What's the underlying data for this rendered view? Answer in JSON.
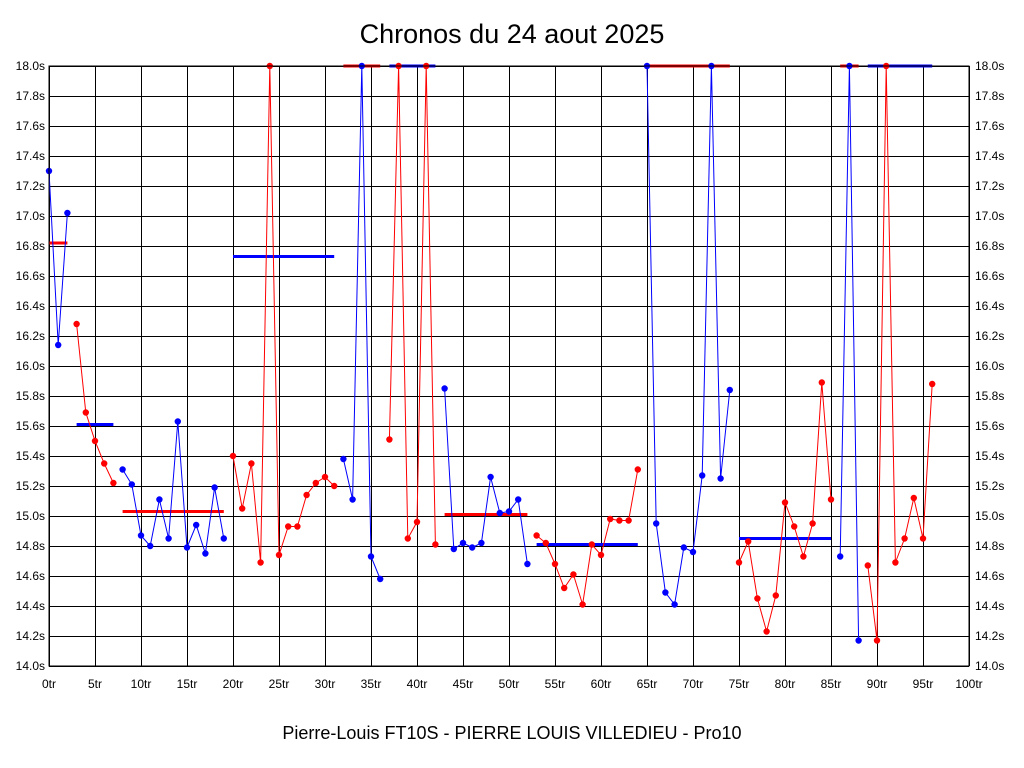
{
  "chart_data": {
    "type": "line",
    "title": "Chronos du 24 aout 2025",
    "subtitle": "Pierre-Louis FT10S - PIERRE LOUIS VILLEDIEU - Pro10",
    "x_ticks": [
      "0tr",
      "5tr",
      "10tr",
      "15tr",
      "20tr",
      "25tr",
      "30tr",
      "35tr",
      "40tr",
      "45tr",
      "50tr",
      "55tr",
      "60tr",
      "65tr",
      "70tr",
      "75tr",
      "80tr",
      "85tr",
      "90tr",
      "95tr",
      "100tr"
    ],
    "y_ticks": [
      "14.0s",
      "14.2s",
      "14.4s",
      "14.6s",
      "14.8s",
      "15.0s",
      "15.2s",
      "15.4s",
      "15.6s",
      "15.8s",
      "16.0s",
      "16.2s",
      "16.4s",
      "16.6s",
      "16.8s",
      "17.0s",
      "17.2s",
      "17.4s",
      "17.6s",
      "17.8s",
      "18.0s"
    ],
    "xlim": [
      0,
      100
    ],
    "ylim": [
      14.0,
      18.0
    ],
    "grid": true,
    "y_axis_both_sides": true,
    "colors": {
      "red": "#ff0000",
      "blue": "#0000ff"
    },
    "segments": [
      {
        "color": "blue",
        "points": [
          [
            0,
            17.3
          ],
          [
            1,
            16.14
          ],
          [
            2,
            17.02
          ]
        ]
      },
      {
        "color": "red",
        "points": [
          [
            3,
            16.28
          ],
          [
            4,
            15.69
          ],
          [
            5,
            15.5
          ],
          [
            6,
            15.35
          ],
          [
            7,
            15.22
          ]
        ]
      },
      {
        "color": "blue",
        "points": [
          [
            8,
            15.31
          ],
          [
            9,
            15.21
          ],
          [
            10,
            14.87
          ],
          [
            11,
            14.8
          ],
          [
            12,
            15.11
          ],
          [
            13,
            14.85
          ],
          [
            14,
            15.63
          ],
          [
            15,
            14.79
          ],
          [
            16,
            14.94
          ],
          [
            17,
            14.75
          ],
          [
            18,
            15.19
          ],
          [
            19,
            14.85
          ]
        ]
      },
      {
        "color": "red",
        "points": [
          [
            20,
            15.4
          ],
          [
            21,
            15.05
          ],
          [
            22,
            15.35
          ],
          [
            23,
            14.69
          ],
          [
            24,
            18.0
          ],
          [
            25,
            14.74
          ],
          [
            26,
            14.93
          ],
          [
            27,
            14.93
          ],
          [
            28,
            15.14
          ],
          [
            29,
            15.22
          ],
          [
            30,
            15.26
          ],
          [
            31,
            15.2
          ]
        ]
      },
      {
        "color": "blue",
        "points": [
          [
            32,
            15.38
          ],
          [
            33,
            15.11
          ],
          [
            34,
            18.0
          ],
          [
            35,
            14.73
          ],
          [
            36,
            14.58
          ]
        ]
      },
      {
        "color": "red",
        "points": [
          [
            37,
            15.51
          ],
          [
            38,
            18.0
          ],
          [
            39,
            14.85
          ],
          [
            40,
            14.96
          ],
          [
            41,
            18.0
          ],
          [
            42,
            14.81
          ]
        ]
      },
      {
        "color": "blue",
        "points": [
          [
            43,
            15.85
          ],
          [
            44,
            14.78
          ],
          [
            45,
            14.82
          ],
          [
            46,
            14.79
          ],
          [
            47,
            14.82
          ],
          [
            48,
            15.26
          ],
          [
            49,
            15.02
          ],
          [
            50,
            15.03
          ],
          [
            51,
            15.11
          ],
          [
            52,
            14.68
          ]
        ]
      },
      {
        "color": "red",
        "points": [
          [
            53,
            14.87
          ],
          [
            54,
            14.82
          ],
          [
            55,
            14.68
          ],
          [
            56,
            14.52
          ],
          [
            57,
            14.61
          ],
          [
            58,
            14.41
          ],
          [
            59,
            14.81
          ],
          [
            60,
            14.74
          ],
          [
            61,
            14.98
          ],
          [
            62,
            14.97
          ],
          [
            63,
            14.97
          ],
          [
            64,
            15.31
          ]
        ]
      },
      {
        "color": "blue",
        "points": [
          [
            65,
            18.0
          ],
          [
            66,
            14.95
          ],
          [
            67,
            14.49
          ],
          [
            68,
            14.41
          ],
          [
            69,
            14.79
          ],
          [
            70,
            14.76
          ],
          [
            71,
            15.27
          ],
          [
            72,
            18.0
          ],
          [
            73,
            15.25
          ],
          [
            74,
            15.84
          ]
        ]
      },
      {
        "color": "red",
        "points": [
          [
            75,
            14.69
          ],
          [
            76,
            14.83
          ],
          [
            77,
            14.45
          ],
          [
            78,
            14.23
          ],
          [
            79,
            14.47
          ],
          [
            80,
            15.09
          ],
          [
            81,
            14.93
          ],
          [
            82,
            14.73
          ],
          [
            83,
            14.95
          ],
          [
            84,
            15.89
          ],
          [
            85,
            15.11
          ]
        ]
      },
      {
        "color": "blue",
        "points": [
          [
            86,
            14.73
          ],
          [
            87,
            18.0
          ],
          [
            88,
            14.17
          ]
        ]
      },
      {
        "color": "red",
        "points": [
          [
            89,
            14.67
          ],
          [
            90,
            14.17
          ],
          [
            91,
            18.0
          ],
          [
            92,
            14.69
          ],
          [
            93,
            14.85
          ],
          [
            94,
            15.12
          ],
          [
            95,
            14.85
          ],
          [
            96,
            15.88
          ]
        ]
      }
    ],
    "averages": [
      {
        "color": "red",
        "x": [
          0,
          2
        ],
        "y": 16.82
      },
      {
        "color": "blue",
        "x": [
          3,
          7
        ],
        "y": 15.61
      },
      {
        "color": "red",
        "x": [
          8,
          19
        ],
        "y": 15.03
      },
      {
        "color": "blue",
        "x": [
          20,
          31
        ],
        "y": 16.73
      },
      {
        "color": "red",
        "x": [
          32,
          36
        ],
        "y": 18.0
      },
      {
        "color": "blue",
        "x": [
          37,
          42
        ],
        "y": 18.0
      },
      {
        "color": "red",
        "x": [
          43,
          52
        ],
        "y": 15.01
      },
      {
        "color": "blue",
        "x": [
          53,
          64
        ],
        "y": 14.81
      },
      {
        "color": "red",
        "x": [
          65,
          74
        ],
        "y": 18.0
      },
      {
        "color": "blue",
        "x": [
          75,
          85
        ],
        "y": 14.85
      },
      {
        "color": "red",
        "x": [
          86,
          88
        ],
        "y": 18.0
      },
      {
        "color": "blue",
        "x": [
          89,
          96
        ],
        "y": 18.0
      }
    ]
  }
}
